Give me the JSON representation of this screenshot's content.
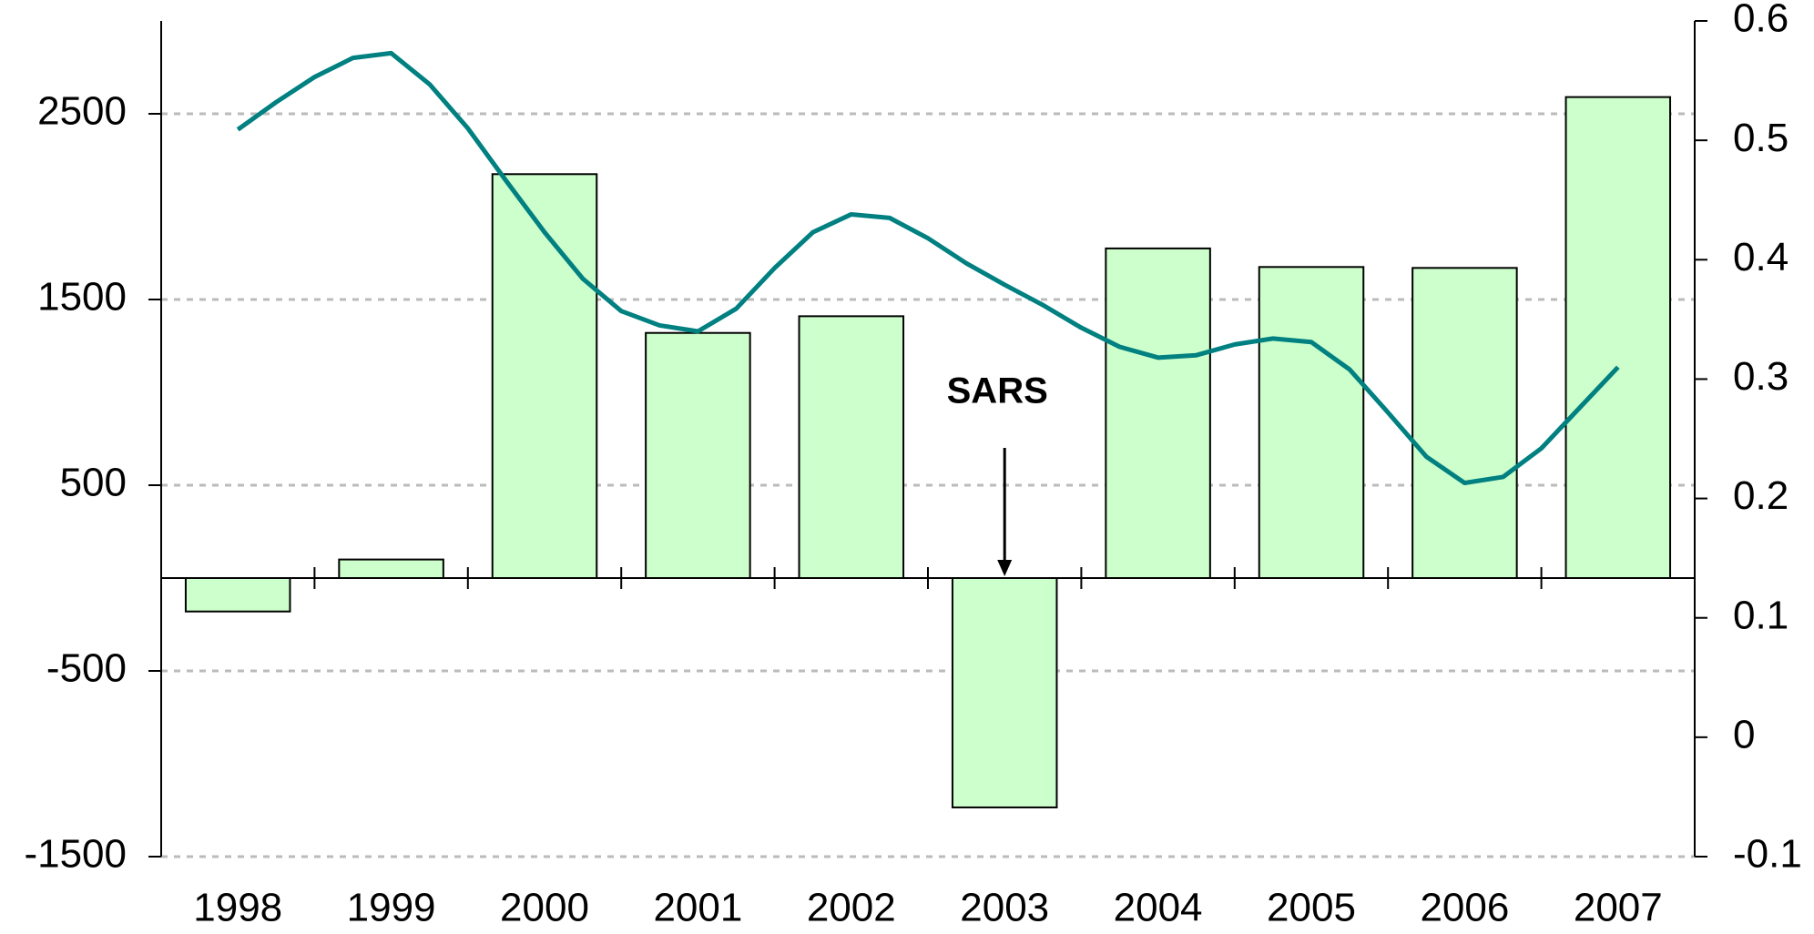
{
  "chart_data": {
    "type": "bar",
    "categories": [
      "1998",
      "1999",
      "2000",
      "2001",
      "2002",
      "2003",
      "2004",
      "2005",
      "2006",
      "2007"
    ],
    "series": [
      {
        "type": "bar",
        "color": "#ccffcc",
        "values": [
          -180,
          100,
          2175,
          1320,
          1410,
          -1235,
          1775,
          1675,
          1670,
          2590
        ]
      },
      {
        "type": "line",
        "axis": "y2",
        "color": "#008080",
        "x": [
          1998,
          1998.25,
          1998.5,
          1998.75,
          1999,
          1999.25,
          1999.5,
          1999.75,
          2000,
          2000.25,
          2000.5,
          2000.75,
          2001,
          2001.25,
          2001.5,
          2001.75,
          2002,
          2002.25,
          2002.5,
          2002.75,
          2003,
          2003.25,
          2003.5,
          2003.75,
          2004,
          2004.25,
          2004.5,
          2004.75,
          2005,
          2005.25,
          2005.5,
          2005.75,
          2006,
          2006.25,
          2006.5,
          2006.75,
          2007
        ],
        "values": [
          0.509,
          0.532,
          0.553,
          0.569,
          0.573,
          0.547,
          0.51,
          0.466,
          0.423,
          0.384,
          0.357,
          0.345,
          0.34,
          0.359,
          0.393,
          0.423,
          0.438,
          0.435,
          0.418,
          0.397,
          0.379,
          0.362,
          0.343,
          0.327,
          0.318,
          0.32,
          0.329,
          0.334,
          0.331,
          0.308,
          0.272,
          0.235,
          0.213,
          0.218,
          0.242,
          0.276,
          0.31
        ]
      }
    ],
    "ylim": [
      -1500,
      3000
    ],
    "yticks": [
      -1500,
      -500,
      500,
      1500,
      2500
    ],
    "y2lim": [
      -0.1,
      0.6
    ],
    "y2ticks": [
      -0.1,
      0,
      0.1,
      0.2,
      0.3,
      0.4,
      0.5,
      0.6
    ],
    "grid": true,
    "annotation": {
      "text": "SARS",
      "category": "2003"
    }
  }
}
